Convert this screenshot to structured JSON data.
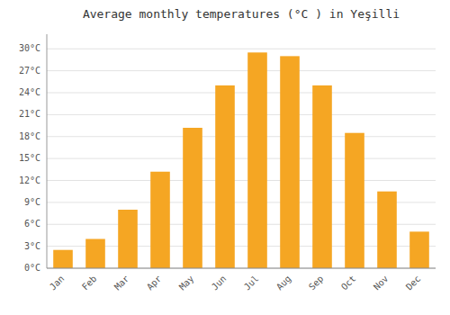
{
  "chart_data": {
    "type": "bar",
    "title": "Average monthly temperatures (°C ) in Yeşilli",
    "categories": [
      "Jan",
      "Feb",
      "Mar",
      "Apr",
      "May",
      "Jun",
      "Jul",
      "Aug",
      "Sep",
      "Oct",
      "Nov",
      "Dec"
    ],
    "values": [
      2.5,
      4.0,
      8.0,
      13.2,
      19.2,
      25.0,
      29.5,
      29.0,
      25.0,
      18.5,
      10.5,
      5.0
    ],
    "color": "#F5A623",
    "ylim": [
      0,
      32
    ],
    "yticks": [
      {
        "value": 0,
        "label": "0°C"
      },
      {
        "value": 3,
        "label": "3°C"
      },
      {
        "value": 6,
        "label": "6°C"
      },
      {
        "value": 9,
        "label": "9°C"
      },
      {
        "value": 12,
        "label": "12°C"
      },
      {
        "value": 15,
        "label": "15°C"
      },
      {
        "value": 18,
        "label": "18°C"
      },
      {
        "value": 21,
        "label": "21°C"
      },
      {
        "value": 24,
        "label": "24°C"
      },
      {
        "value": 27,
        "label": "27°C"
      },
      {
        "value": 30,
        "label": "30°C"
      }
    ],
    "grid": true
  }
}
